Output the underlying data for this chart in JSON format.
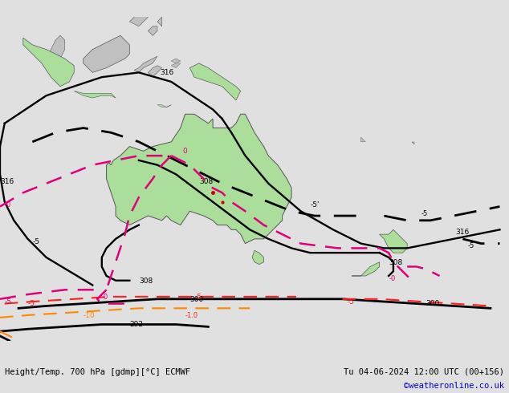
{
  "title_left": "Height/Temp. 700 hPa [gdmp][°C] ECMWF",
  "title_right": "Tu 04-06-2024 12:00 UTC (00+156)",
  "credit": "©weatheronline.co.uk",
  "bg_color": "#e0e0e0",
  "land_green_color": "#aade9a",
  "land_gray_color": "#c0c0c0",
  "border_color": "#666666",
  "contour_black": "#000000",
  "contour_pink": "#e0007a",
  "contour_orange": "#ff8800",
  "contour_red": "#ff2020",
  "credit_color": "#0000cc",
  "fig_width": 6.34,
  "fig_height": 4.9,
  "dpi": 100,
  "lon_min": 90,
  "lon_max": 200,
  "lat_min": -60,
  "lat_max": 10
}
